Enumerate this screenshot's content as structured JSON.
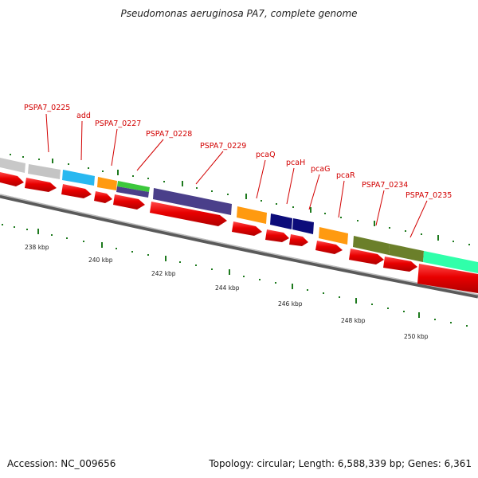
{
  "title": "Pseudomonas aeruginosa PA7, complete genome",
  "footer": {
    "accession": "Accession: NC_009656",
    "topology": "Topology: circular; Length: 6,588,339 bp; Genes: 6,361"
  },
  "gene_labels": [
    "PSPA7_0225",
    "add",
    "PSPA7_0227",
    "PSPA7_0228",
    "PSPA7_0229",
    "pcaQ",
    "pcaH",
    "pcaG",
    "pcaR",
    "PSPA7_0234",
    "PSPA7_0235"
  ],
  "kbp_ticks": [
    "238 kbp",
    "240 kbp",
    "242 kbp",
    "244 kbp",
    "246 kbp",
    "248 kbp",
    "250 kbp"
  ],
  "colors": {
    "gene_arrow": "#e00000",
    "label": "#d20000",
    "backbone": "#808080",
    "tick": "#1e7a1e"
  }
}
